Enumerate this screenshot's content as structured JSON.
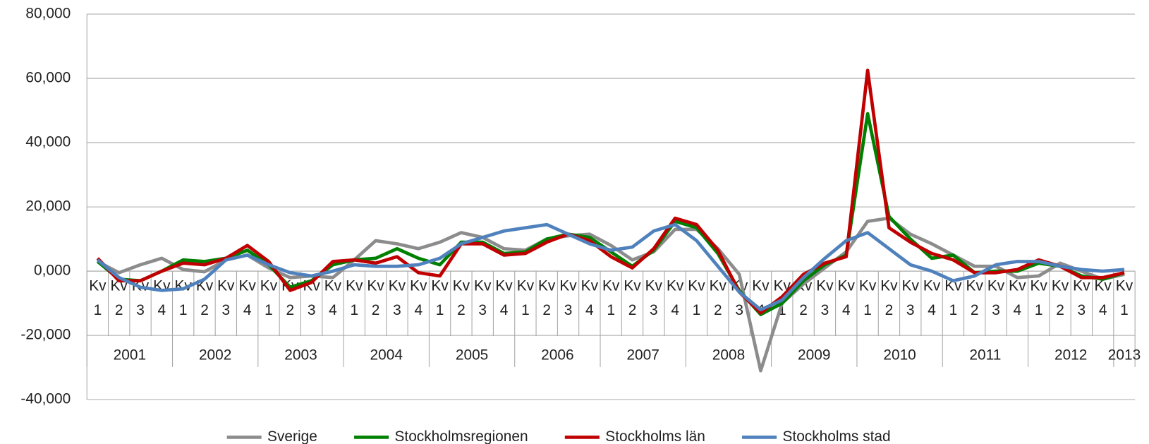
{
  "chart_data": {
    "type": "line",
    "categories": [
      "Kv 1",
      "Kv 2",
      "Kv 3",
      "Kv 4",
      "Kv 1",
      "Kv 2",
      "Kv 3",
      "Kv 4",
      "Kv 1",
      "Kv 2",
      "Kv 3",
      "Kv 4",
      "Kv 1",
      "Kv 2",
      "Kv 3",
      "Kv 4",
      "Kv 1",
      "Kv 2",
      "Kv 3",
      "Kv 4",
      "Kv 1",
      "Kv 2",
      "Kv 3",
      "Kv 4",
      "Kv 1",
      "Kv 2",
      "Kv 3",
      "Kv 4",
      "Kv 1",
      "Kv 2",
      "Kv 3",
      "Kv 4",
      "Kv 1",
      "Kv 2",
      "Kv 3",
      "Kv 4",
      "Kv 1",
      "Kv 2",
      "Kv 3",
      "Kv 4",
      "Kv 1",
      "Kv 2",
      "Kv 3",
      "Kv 4",
      "Kv 1",
      "Kv 2",
      "Kv 3",
      "Kv 4",
      "Kv 1"
    ],
    "groups": [
      "2001",
      "2002",
      "2003",
      "2004",
      "2005",
      "2006",
      "2007",
      "2008",
      "2009",
      "2010",
      "2011",
      "2012",
      "2013"
    ],
    "ylim": [
      -40000,
      80000
    ],
    "yticks": [
      {
        "value": -40000,
        "label": "-40,000"
      },
      {
        "value": -20000,
        "label": "-20,000"
      },
      {
        "value": 0,
        "label": "0,000"
      },
      {
        "value": 20000,
        "label": "20,000"
      },
      {
        "value": 40000,
        "label": "40,000"
      },
      {
        "value": 60000,
        "label": "60,000"
      },
      {
        "value": 80000,
        "label": "80,000"
      }
    ],
    "grid": true,
    "legend": "bottom",
    "series": [
      {
        "name": "Sverige",
        "color": "#8c8c8c",
        "values": [
          3000,
          -500,
          2000,
          4000,
          500,
          -200,
          3500,
          5000,
          1000,
          -2000,
          -1500,
          -2000,
          3500,
          9500,
          8500,
          7000,
          9000,
          12000,
          10500,
          7000,
          6500,
          10000,
          11000,
          11500,
          8000,
          3500,
          6000,
          13000,
          13000,
          7000,
          -1000,
          -31000,
          -10000,
          -4000,
          1000,
          6000,
          15500,
          16500,
          11500,
          8500,
          5000,
          1500,
          1500,
          -2000,
          -1500,
          2500,
          0,
          -2500,
          -1000
        ]
      },
      {
        "name": "Stockholmsregionen",
        "color": "#008000",
        "values": [
          3000,
          -2500,
          -3000,
          0,
          3500,
          3000,
          4000,
          6500,
          2000,
          -5000,
          -3000,
          2000,
          3500,
          4000,
          7000,
          4000,
          2000,
          9000,
          9000,
          5500,
          6000,
          10000,
          11500,
          10500,
          6000,
          1500,
          6500,
          15500,
          13500,
          5500,
          -6000,
          -13500,
          -10000,
          -3000,
          2000,
          5000,
          49000,
          17000,
          10000,
          4000,
          5000,
          -500,
          0,
          0,
          2500,
          1500,
          -1500,
          -2500,
          -500
        ]
      },
      {
        "name": "Stockholms län",
        "color": "#c00000",
        "values": [
          4000,
          -3000,
          -3000,
          0,
          2500,
          2000,
          4000,
          8000,
          3000,
          -6000,
          -3500,
          3000,
          3500,
          2500,
          4500,
          -500,
          -1500,
          8500,
          8500,
          5000,
          5500,
          9000,
          11500,
          9500,
          4500,
          1000,
          7000,
          16500,
          14500,
          6500,
          -6500,
          -13000,
          -8000,
          -1000,
          2500,
          4500,
          62500,
          13500,
          9000,
          5500,
          3500,
          -500,
          -500,
          500,
          3500,
          1500,
          -2000,
          -2000,
          -500
        ]
      },
      {
        "name": "Stockholms stad",
        "color": "#4f81bd",
        "values": [
          3500,
          -2000,
          -5000,
          -6000,
          -5500,
          -2500,
          3500,
          5000,
          2000,
          -500,
          -1500,
          0,
          2000,
          1500,
          1500,
          2000,
          4000,
          8500,
          10500,
          12500,
          13500,
          14500,
          11500,
          8500,
          6500,
          7500,
          12500,
          14500,
          9500,
          1500,
          -6500,
          -12000,
          -9000,
          -2000,
          4000,
          9500,
          12000,
          7000,
          2000,
          0,
          -3000,
          -1500,
          2000,
          3000,
          3000,
          1500,
          500,
          0,
          500
        ]
      }
    ]
  }
}
